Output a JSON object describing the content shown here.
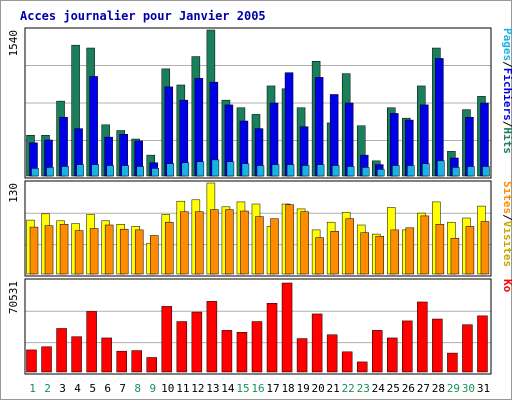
{
  "title": "Acces journalier pour Janvier 2005",
  "colors": {
    "background": "#ffffff",
    "title": "#0000aa",
    "panel_border": "#000000",
    "gridline": "#888888",
    "pages": "#1ab2e6",
    "fichiers": "#0000e6",
    "hits": "#1a7f5a",
    "sites": "#ff8c00",
    "visites": "#ffff00",
    "ko": "#ff0000",
    "axis_weekday": "#0000aa",
    "axis_weekend": "#1a8f5a"
  },
  "chart_data": [
    {
      "type": "bar",
      "panel": "hits",
      "categories": [
        "1",
        "2",
        "3",
        "4",
        "5",
        "6",
        "7",
        "8",
        "9",
        "10",
        "11",
        "12",
        "13",
        "14",
        "15",
        "16",
        "17",
        "18",
        "19",
        "20",
        "21",
        "22",
        "23",
        "24",
        "25",
        "26",
        "27",
        "28",
        "29",
        "30",
        "31"
      ],
      "weekend_days": [
        "1",
        "2",
        "8",
        "9",
        "15",
        "16",
        "22",
        "23",
        "29",
        "30"
      ],
      "ylim": [
        0,
        1540
      ],
      "ytick_label": "1540",
      "legend_right": [
        "Pages",
        "/",
        "Fichiers",
        "/",
        "Hits"
      ],
      "series": [
        {
          "name": "Hits",
          "values": [
            430,
            430,
            790,
            1380,
            1350,
            540,
            480,
            390,
            220,
            1130,
            960,
            1260,
            1540,
            800,
            720,
            650,
            950,
            920,
            720,
            1210,
            560,
            1080,
            530,
            160,
            720,
            610,
            950,
            1350,
            260,
            700,
            840
          ]
        },
        {
          "name": "Fichiers",
          "values": [
            350,
            380,
            620,
            500,
            1050,
            410,
            440,
            370,
            140,
            940,
            800,
            1030,
            990,
            750,
            580,
            500,
            770,
            1090,
            520,
            1040,
            860,
            770,
            220,
            120,
            660,
            590,
            750,
            1240,
            190,
            620,
            770
          ]
        },
        {
          "name": "Pages",
          "values": [
            80,
            90,
            100,
            120,
            120,
            110,
            110,
            100,
            80,
            130,
            140,
            150,
            170,
            150,
            130,
            110,
            120,
            120,
            110,
            120,
            110,
            100,
            90,
            70,
            110,
            110,
            130,
            160,
            90,
            100,
            100
          ]
        }
      ]
    },
    {
      "type": "bar",
      "panel": "visites",
      "categories": [
        "1",
        "2",
        "3",
        "4",
        "5",
        "6",
        "7",
        "8",
        "9",
        "10",
        "11",
        "12",
        "13",
        "14",
        "15",
        "16",
        "17",
        "18",
        "19",
        "20",
        "21",
        "22",
        "23",
        "24",
        "25",
        "26",
        "27",
        "28",
        "29",
        "30",
        "31"
      ],
      "ylim": [
        0,
        130
      ],
      "ytick_label": "130",
      "legend_right": [
        "Sites",
        "/",
        "Visites"
      ],
      "series": [
        {
          "name": "Visites",
          "values": [
            77,
            86,
            76,
            72,
            85,
            76,
            71,
            68,
            44,
            85,
            104,
            106,
            130,
            96,
            103,
            100,
            68,
            100,
            93,
            63,
            74,
            88,
            70,
            57,
            95,
            63,
            87,
            103,
            74,
            80,
            97
          ]
        },
        {
          "name": "Sites",
          "values": [
            67,
            69,
            71,
            62,
            65,
            70,
            64,
            63,
            55,
            74,
            89,
            89,
            92,
            92,
            90,
            82,
            79,
            99,
            89,
            52,
            61,
            79,
            59,
            54,
            63,
            66,
            83,
            71,
            51,
            68,
            75
          ]
        }
      ]
    },
    {
      "type": "bar",
      "panel": "ko",
      "categories": [
        "1",
        "2",
        "3",
        "4",
        "5",
        "6",
        "7",
        "8",
        "9",
        "10",
        "11",
        "12",
        "13",
        "14",
        "15",
        "16",
        "17",
        "18",
        "19",
        "20",
        "21",
        "22",
        "23",
        "24",
        "25",
        "26",
        "27",
        "28",
        "29",
        "30",
        "31"
      ],
      "ylim": [
        0,
        70531
      ],
      "ytick_label": "70531",
      "legend_right": [
        "Ko"
      ],
      "series": [
        {
          "name": "Ko",
          "values": [
            17500,
            20000,
            34500,
            28000,
            48000,
            27000,
            16500,
            17000,
            11500,
            52000,
            40000,
            47500,
            56000,
            33000,
            31500,
            40000,
            54500,
            70531,
            26500,
            46000,
            29500,
            16000,
            8000,
            33000,
            27000,
            40500,
            55500,
            42000,
            15000,
            37500,
            44500
          ]
        }
      ]
    }
  ]
}
